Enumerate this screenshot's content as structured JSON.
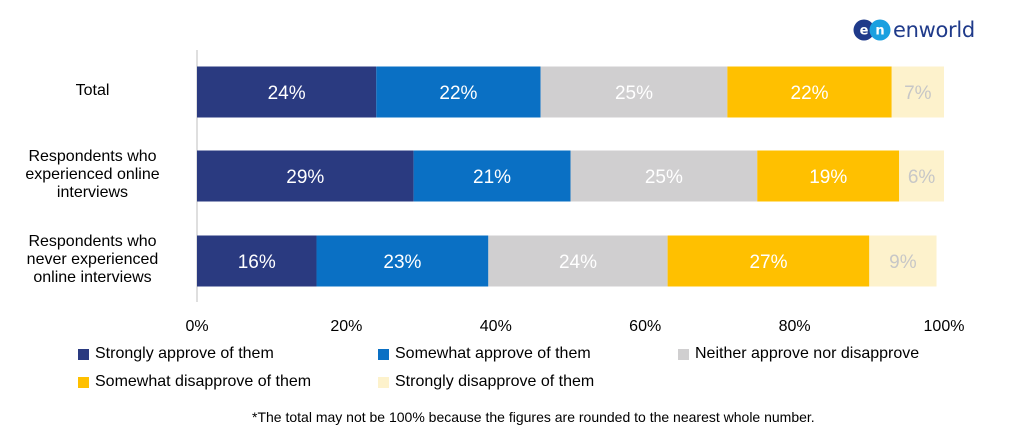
{
  "logo": {
    "mark_text": "en",
    "wordmark": "enworld",
    "color": "#1f3a8a"
  },
  "chart_data": {
    "type": "bar",
    "orientation": "horizontal",
    "stacked": true,
    "title": "",
    "xlabel": "",
    "ylabel": "",
    "xlim": [
      0,
      100
    ],
    "x_ticks": [
      "0%",
      "20%",
      "40%",
      "60%",
      "80%",
      "100%"
    ],
    "categories": [
      "Total",
      "Respondents who experienced online interviews",
      "Respondents who never experienced online interviews"
    ],
    "category_lines": [
      [
        "Total"
      ],
      [
        "Respondents who",
        "experienced online",
        "interviews"
      ],
      [
        "Respondents who",
        "never experienced",
        "online interviews"
      ]
    ],
    "series": [
      {
        "name": "Strongly approve of them",
        "color": "#2a3a80",
        "label_color": "#ffffff",
        "values": [
          24,
          29,
          16
        ],
        "labels": [
          "24%",
          "29%",
          "16%"
        ]
      },
      {
        "name": "Somewhat approve of them",
        "color": "#0a70c4",
        "label_color": "#ffffff",
        "values": [
          22,
          21,
          23
        ],
        "labels": [
          "22%",
          "21%",
          "23%"
        ]
      },
      {
        "name": "Neither approve nor disapprove",
        "color": "#d0cfd0",
        "label_color": "#ffffff",
        "values": [
          25,
          25,
          24
        ],
        "labels": [
          "25%",
          "25%",
          "24%"
        ]
      },
      {
        "name": "Somewhat disapprove of them",
        "color": "#ffc000",
        "label_color": "#ffffff",
        "values": [
          22,
          19,
          27
        ],
        "labels": [
          "22%",
          "19%",
          "27%"
        ]
      },
      {
        "name": "Strongly disapprove of them",
        "color": "#fdf2cc",
        "label_color": "#c7c7c7",
        "values": [
          7,
          6,
          9
        ],
        "labels": [
          "7%",
          "6%",
          "9%"
        ]
      }
    ],
    "legend_position": "bottom"
  },
  "footnote": "*The total may not be 100% because the figures are rounded to the nearest whole number."
}
